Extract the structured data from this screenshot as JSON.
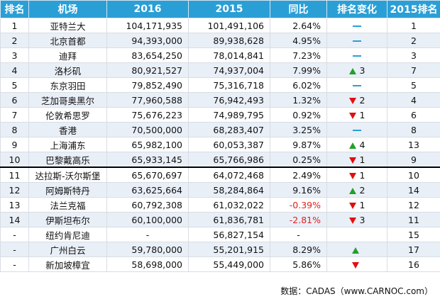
{
  "table": {
    "headers": [
      "排名",
      "机场",
      "2016",
      "2015",
      "同比",
      "排名变化",
      "2015排名"
    ],
    "rows": [
      {
        "rank": "1",
        "airport": "亚特兰大",
        "y2016": "104,171,935",
        "y2015": "101,491,106",
        "yoy": "2.64%",
        "change": {
          "dir": "same",
          "value": ""
        },
        "rank2015": "1"
      },
      {
        "rank": "2",
        "airport": "北京首都",
        "y2016": "94,393,000",
        "y2015": "89,938,628",
        "yoy": "4.95%",
        "change": {
          "dir": "same",
          "value": ""
        },
        "rank2015": "2"
      },
      {
        "rank": "3",
        "airport": "迪拜",
        "y2016": "83,654,250",
        "y2015": "78,014,841",
        "yoy": "7.23%",
        "change": {
          "dir": "same",
          "value": ""
        },
        "rank2015": "3"
      },
      {
        "rank": "4",
        "airport": "洛杉矶",
        "y2016": "80,921,527",
        "y2015": "74,937,004",
        "yoy": "7.99%",
        "change": {
          "dir": "up",
          "value": "3"
        },
        "rank2015": "7"
      },
      {
        "rank": "5",
        "airport": "东京羽田",
        "y2016": "79,852,490",
        "y2015": "75,316,718",
        "yoy": "6.02%",
        "change": {
          "dir": "same",
          "value": ""
        },
        "rank2015": "5"
      },
      {
        "rank": "6",
        "airport": "芝加哥奥黑尔",
        "y2016": "77,960,588",
        "y2015": "76,942,493",
        "yoy": "1.32%",
        "change": {
          "dir": "down",
          "value": "2"
        },
        "rank2015": "4"
      },
      {
        "rank": "7",
        "airport": "伦敦希思罗",
        "y2016": "75,676,223",
        "y2015": "74,989,795",
        "yoy": "0.92%",
        "change": {
          "dir": "down",
          "value": "1"
        },
        "rank2015": "6"
      },
      {
        "rank": "8",
        "airport": "香港",
        "y2016": "70,500,000",
        "y2015": "68,283,407",
        "yoy": "3.25%",
        "change": {
          "dir": "same",
          "value": ""
        },
        "rank2015": "8"
      },
      {
        "rank": "9",
        "airport": "上海浦东",
        "y2016": "65,982,100",
        "y2015": "60,053,387",
        "yoy": "9.87%",
        "change": {
          "dir": "up",
          "value": "4"
        },
        "rank2015": "13"
      },
      {
        "rank": "10",
        "airport": "巴黎戴高乐",
        "y2016": "65,933,145",
        "y2015": "65,766,986",
        "yoy": "0.25%",
        "change": {
          "dir": "down",
          "value": "1"
        },
        "rank2015": "9"
      },
      {
        "rank": "11",
        "airport": "达拉斯-沃尔斯堡",
        "y2016": "65,670,697",
        "y2015": "64,072,468",
        "yoy": "2.49%",
        "change": {
          "dir": "down",
          "value": "1"
        },
        "rank2015": "10"
      },
      {
        "rank": "12",
        "airport": "阿姆斯特丹",
        "y2016": "63,625,664",
        "y2015": "58,284,864",
        "yoy": "9.16%",
        "change": {
          "dir": "up",
          "value": "2"
        },
        "rank2015": "14"
      },
      {
        "rank": "13",
        "airport": "法兰克福",
        "y2016": "60,792,308",
        "y2015": "61,032,022",
        "yoy": "-0.39%",
        "change": {
          "dir": "down",
          "value": "1"
        },
        "rank2015": "12"
      },
      {
        "rank": "14",
        "airport": "伊斯坦布尔",
        "y2016": "60,100,000",
        "y2015": "61,836,781",
        "yoy": "-2.81%",
        "change": {
          "dir": "down",
          "value": "3"
        },
        "rank2015": "11"
      },
      {
        "rank": "-",
        "airport": "纽约肯尼迪",
        "y2016": "-",
        "y2015": "56,827,154",
        "yoy": "-",
        "change": {
          "dir": "none",
          "value": ""
        },
        "rank2015": "15"
      },
      {
        "rank": "-",
        "airport": "广州白云",
        "y2016": "59,780,000",
        "y2015": "55,201,915",
        "yoy": "8.29%",
        "change": {
          "dir": "up",
          "value": ""
        },
        "rank2015": "17"
      },
      {
        "rank": "-",
        "airport": "新加坡樟宜",
        "y2016": "58,698,000",
        "y2015": "55,449,000",
        "yoy": "5.86%",
        "change": {
          "dir": "down",
          "value": ""
        },
        "rank2015": "16"
      }
    ]
  },
  "source": "数据：CADAS（www.CARNOC.com）"
}
